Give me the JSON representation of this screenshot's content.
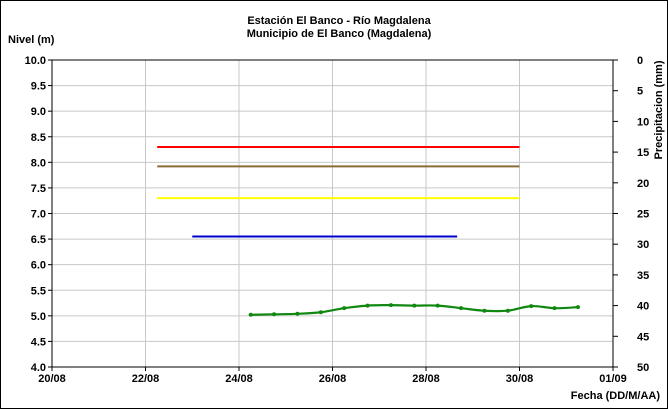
{
  "chart_data": {
    "type": "line",
    "title": "Estación El Banco - Río Magdalena",
    "subtitle": "Municipio de El Banco (Magdalena)",
    "ylabel": "Nivel (m)",
    "y2label": "Precipitacion (mm)",
    "xlabel": "Fecha (DD/M/AA)",
    "ylim": [
      4.0,
      10.0
    ],
    "y2lim": [
      0,
      50
    ],
    "y2_reversed": true,
    "xlim": [
      "2020-08-20",
      "2020-09-01"
    ],
    "x_ticks": [
      {
        "date": "2020-08-20",
        "label": "20/08"
      },
      {
        "date": "2020-08-22",
        "label": "22/08"
      },
      {
        "date": "2020-08-24",
        "label": "24/08"
      },
      {
        "date": "2020-08-26",
        "label": "26/08"
      },
      {
        "date": "2020-08-28",
        "label": "28/08"
      },
      {
        "date": "2020-08-30",
        "label": "30/08"
      },
      {
        "date": "2020-09-01",
        "label": "01/09"
      }
    ],
    "y_ticks": [
      "4.0",
      "4.5",
      "5.0",
      "5.5",
      "6.0",
      "6.5",
      "7.0",
      "7.5",
      "8.0",
      "8.5",
      "9.0",
      "9.5",
      "10.0"
    ],
    "y2_ticks": [
      "0",
      "5",
      "10",
      "15",
      "20",
      "25",
      "30",
      "35",
      "40",
      "45",
      "50"
    ],
    "grid": true,
    "thresholds": [
      {
        "value": 8.3,
        "color": "#ff0000",
        "x_start": "2020-08-22T06:00",
        "x_end": "2020-08-30T00:00"
      },
      {
        "value": 7.92,
        "color": "#8b6d3a",
        "x_start": "2020-08-22T06:00",
        "x_end": "2020-08-30T00:00"
      },
      {
        "value": 7.3,
        "color": "#ffff00",
        "x_start": "2020-08-22T06:00",
        "x_end": "2020-08-30T00:00"
      },
      {
        "value": 6.55,
        "color": "#0000cc",
        "x_start": "2020-08-23T00:00",
        "x_end": "2020-08-28T16:00"
      }
    ],
    "series": [
      {
        "color": "#118811",
        "x": [
          "2020-08-24T06:00",
          "2020-08-24T18:00",
          "2020-08-25T06:00",
          "2020-08-25T18:00",
          "2020-08-26T06:00",
          "2020-08-26T18:00",
          "2020-08-27T06:00",
          "2020-08-27T18:00",
          "2020-08-28T06:00",
          "2020-08-28T18:00",
          "2020-08-29T06:00",
          "2020-08-29T18:00",
          "2020-08-30T06:00",
          "2020-08-30T18:00",
          "2020-08-31T06:00"
        ],
        "values": [
          5.02,
          5.03,
          5.04,
          5.07,
          5.15,
          5.2,
          5.21,
          5.2,
          5.2,
          5.15,
          5.1,
          5.1,
          5.19,
          5.15,
          5.17
        ]
      }
    ]
  }
}
